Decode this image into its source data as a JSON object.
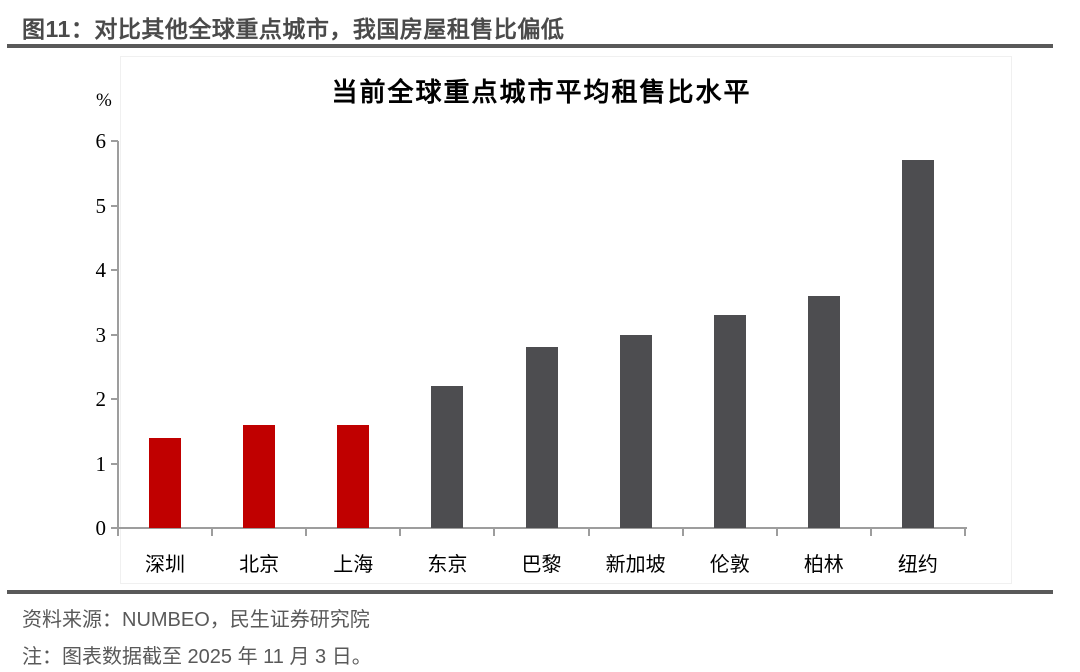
{
  "header": {
    "title": "图11：对比其他全球重点城市，我国房屋租售比偏低"
  },
  "chart_data": {
    "type": "bar",
    "title": "当前全球重点城市平均租售比水平",
    "unit_label": "%",
    "categories": [
      "深圳",
      "北京",
      "上海",
      "东京",
      "巴黎",
      "新加坡",
      "伦敦",
      "柏林",
      "纽约"
    ],
    "values": [
      1.4,
      1.6,
      1.6,
      2.2,
      2.8,
      3.0,
      3.3,
      3.6,
      5.7
    ],
    "bar_colors": [
      "#c00000",
      "#c00000",
      "#c00000",
      "#4d4d50",
      "#4d4d50",
      "#4d4d50",
      "#4d4d50",
      "#4d4d50",
      "#4d4d50"
    ],
    "highlight_color": "#c00000",
    "default_color": "#4d4d50",
    "xlabel": "",
    "ylabel": "%",
    "ylim": [
      0,
      6
    ],
    "yticks": [
      0,
      1,
      2,
      3,
      4,
      5,
      6
    ],
    "grid": false,
    "legend_position": "none"
  },
  "footer": {
    "source": "资料来源：NUMBEO，民生证券研究院",
    "note": "注：图表数据截至 2025 年 11 月 3 日。"
  }
}
